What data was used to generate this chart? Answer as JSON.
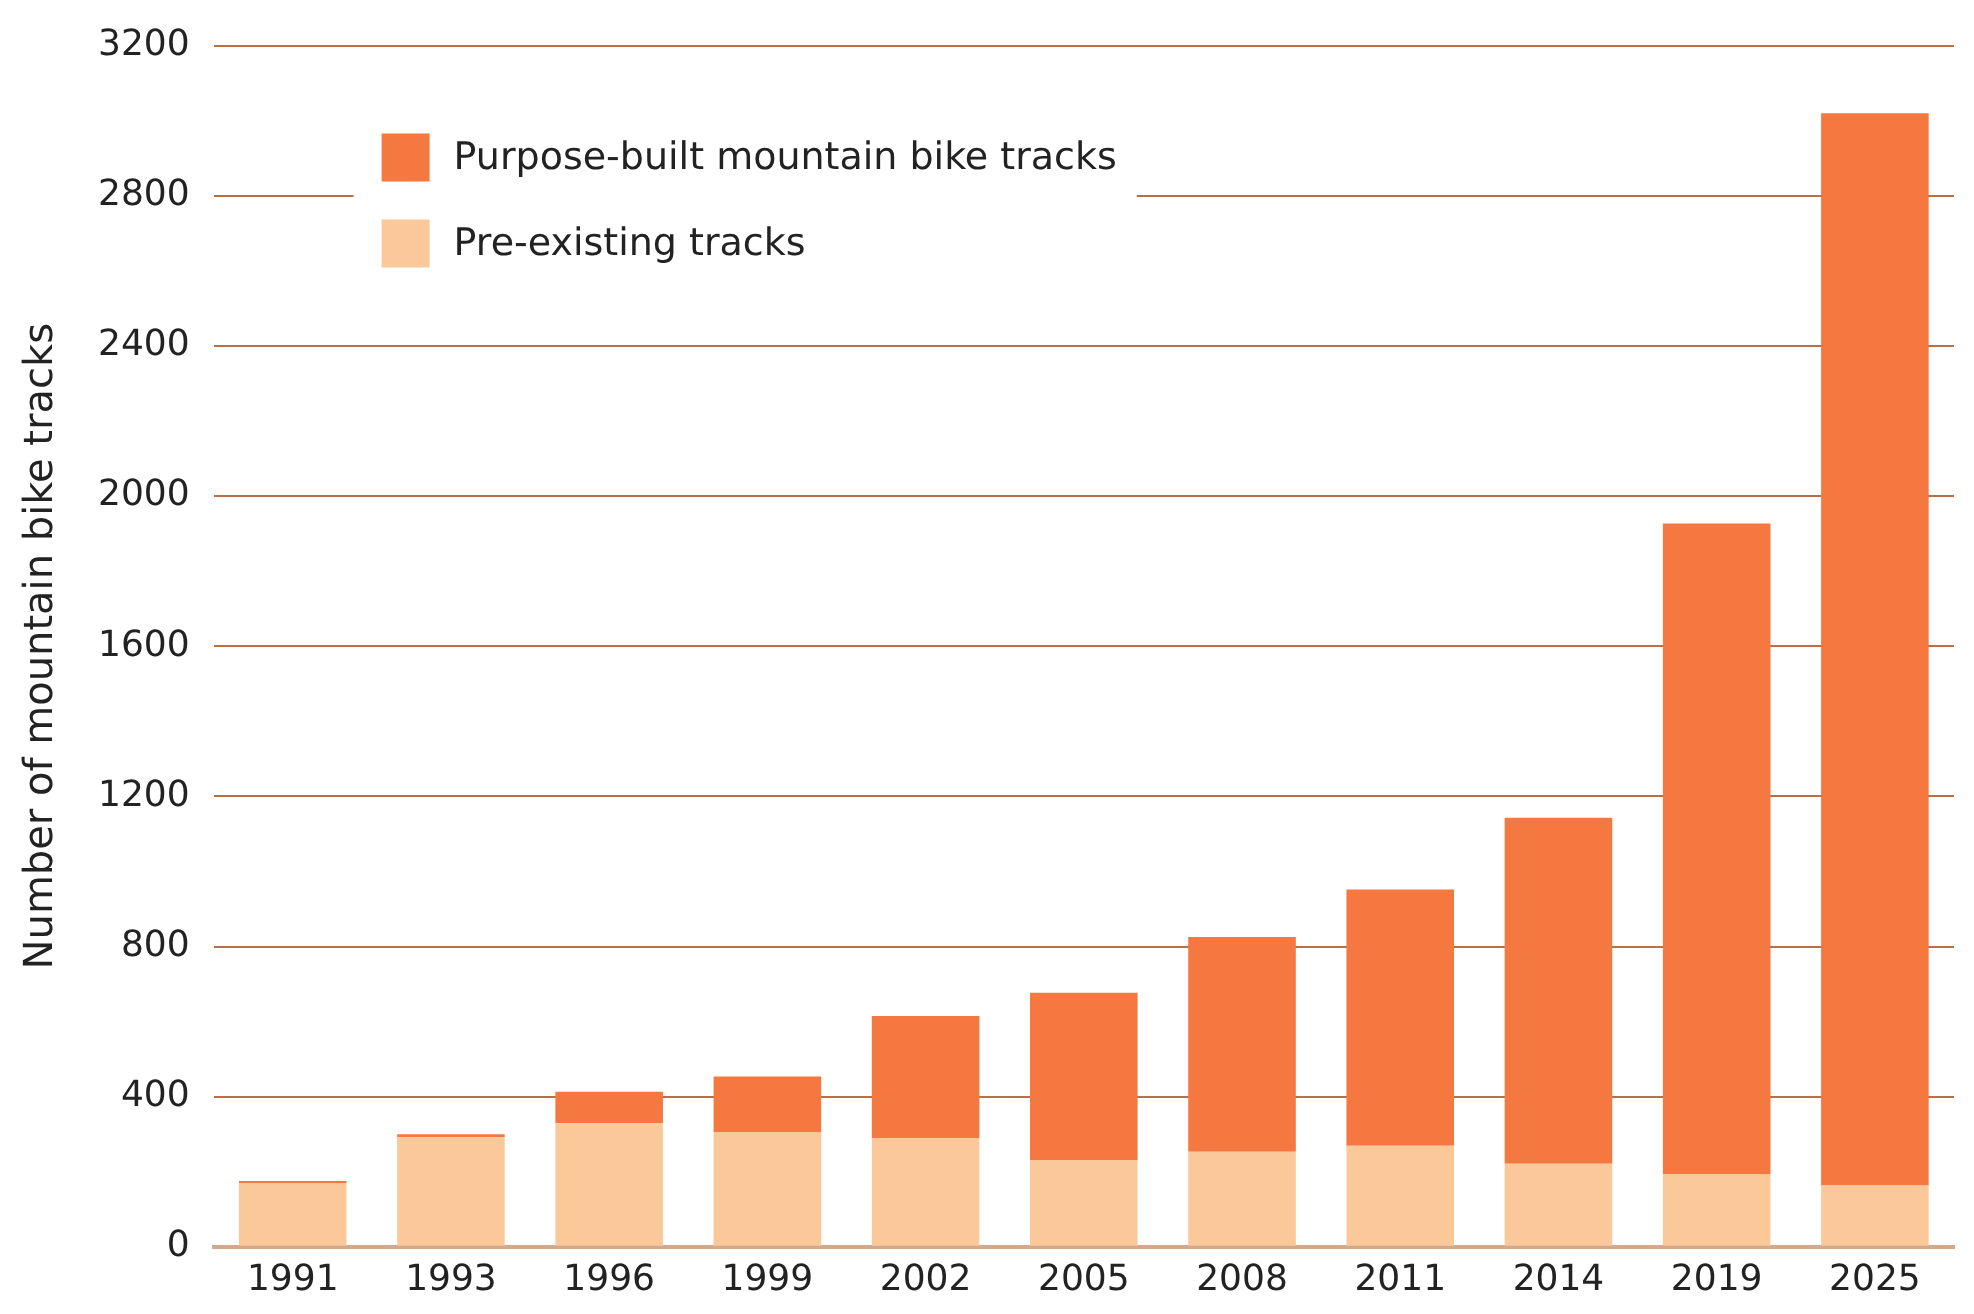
{
  "chart_data": {
    "type": "bar",
    "ylabel": "Number of mountain bike tracks",
    "categories": [
      "1991",
      "1993",
      "1996",
      "1999",
      "2002",
      "2005",
      "2008",
      "2011",
      "2014",
      "2019",
      "2025"
    ],
    "stacked": true,
    "series": [
      {
        "name": "Pre-existing tracks",
        "color": "#fbc89a",
        "values": [
          170,
          292,
          329,
          306,
          290,
          231,
          253,
          269,
          221,
          194,
          163
        ]
      },
      {
        "name": "Purpose-built mountain bike tracks",
        "color": "#f47840",
        "values": [
          5,
          8,
          84,
          148,
          325,
          446,
          572,
          683,
          922,
          1733,
          2857
        ]
      }
    ],
    "ylim": [
      0,
      3200
    ],
    "yticks": [
      0,
      400,
      800,
      1200,
      1600,
      2000,
      2400,
      2800,
      3200
    ],
    "grid": "y",
    "legend": "top left"
  }
}
